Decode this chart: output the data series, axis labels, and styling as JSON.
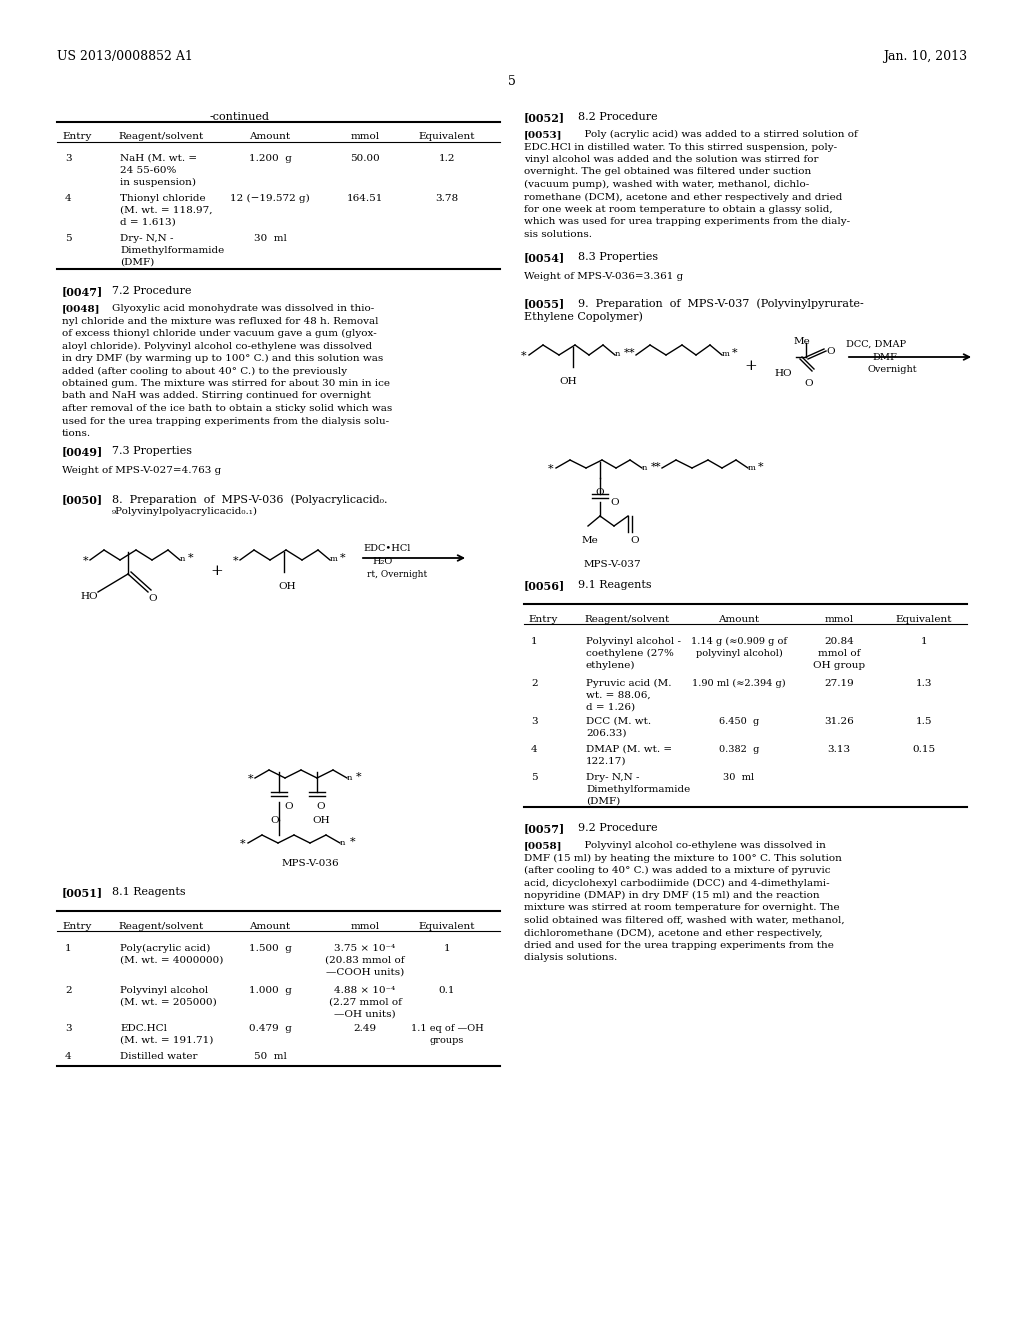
{
  "bg_color": "#ffffff",
  "header_left": "US 2013/0008852 A1",
  "header_right": "Jan. 10, 2013",
  "page_number": "5"
}
